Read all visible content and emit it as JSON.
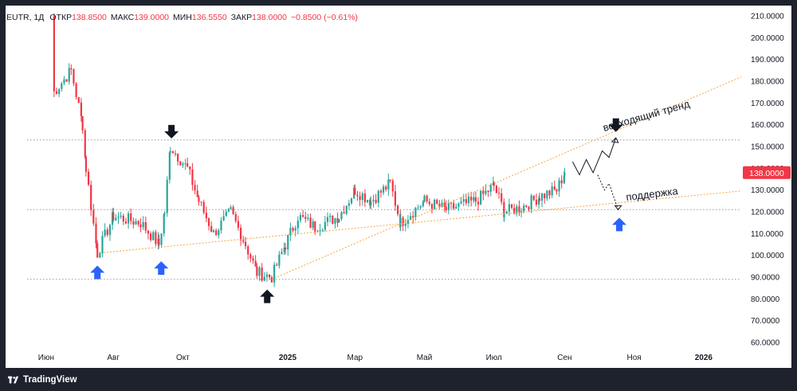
{
  "legend": {
    "symbol": "EUTR, 1Д",
    "open_label": "ОТКР",
    "open_value": "138.8500",
    "high_label": "МАКС",
    "high_value": "139.0000",
    "low_label": "МИН",
    "low_value": "136.5550",
    "close_label": "ЗАКР",
    "close_value": "138.0000",
    "change": "−0.8500 (−0.61%)"
  },
  "brand": {
    "name": "TradingView"
  },
  "colors": {
    "up": "#26a69a",
    "down": "#f23645",
    "trend": "#f7a440",
    "level": "#9598a1",
    "arrow_up": "#2962ff",
    "arrow_down": "#131722",
    "price_tag": "#f23645"
  },
  "chart_data": {
    "type": "candlestick",
    "title": "EUTR, 1Д",
    "ylim": [
      55,
      215
    ],
    "y_ticks": [
      "210.0000",
      "200.0000",
      "190.0000",
      "180.0000",
      "170.0000",
      "160.0000",
      "150.0000",
      "140.0000",
      "130.0000",
      "120.0000",
      "110.0000",
      "100.0000",
      "90.0000",
      "80.0000",
      "70.0000",
      "60.0000"
    ],
    "x_ticks": [
      "Июн",
      "Авг",
      "Окт",
      "2025",
      "Мар",
      "Май",
      "Июл",
      "Сен",
      "Ноя",
      "2026"
    ],
    "last_price": "138.0000",
    "key_points": [
      {
        "t": "2024-06-08",
        "price": 210
      },
      {
        "t": "2024-06-10",
        "price": 175
      },
      {
        "t": "2024-06-25",
        "price": 185
      },
      {
        "t": "2024-07-05",
        "price": 160
      },
      {
        "t": "2024-07-08",
        "price": 140
      },
      {
        "t": "2024-07-18",
        "price": 101
      },
      {
        "t": "2024-08-01",
        "price": 118
      },
      {
        "t": "2024-08-25",
        "price": 115
      },
      {
        "t": "2024-09-10",
        "price": 105
      },
      {
        "t": "2024-09-15",
        "price": 120
      },
      {
        "t": "2024-09-20",
        "price": 150
      },
      {
        "t": "2024-10-05",
        "price": 140
      },
      {
        "t": "2024-10-15",
        "price": 125
      },
      {
        "t": "2024-10-28",
        "price": 110
      },
      {
        "t": "2024-11-12",
        "price": 120
      },
      {
        "t": "2024-11-25",
        "price": 105
      },
      {
        "t": "2024-12-05",
        "price": 92
      },
      {
        "t": "2024-12-18",
        "price": 90
      },
      {
        "t": "2024-12-30",
        "price": 105
      },
      {
        "t": "2025-01-10",
        "price": 118
      },
      {
        "t": "2025-01-25",
        "price": 113
      },
      {
        "t": "2025-02-15",
        "price": 118
      },
      {
        "t": "2025-03-01",
        "price": 130
      },
      {
        "t": "2025-03-15",
        "price": 125
      },
      {
        "t": "2025-04-01",
        "price": 133
      },
      {
        "t": "2025-04-10",
        "price": 115
      },
      {
        "t": "2025-05-01",
        "price": 125
      },
      {
        "t": "2025-05-20",
        "price": 121
      },
      {
        "t": "2025-06-15",
        "price": 125
      },
      {
        "t": "2025-07-01",
        "price": 132
      },
      {
        "t": "2025-07-10",
        "price": 120
      },
      {
        "t": "2025-07-25",
        "price": 122
      },
      {
        "t": "2025-08-10",
        "price": 127
      },
      {
        "t": "2025-08-25",
        "price": 130
      },
      {
        "t": "2025-09-01",
        "price": 138
      }
    ],
    "annotations": {
      "uptrend_label": "восходящий тренд",
      "support_label": "поддержка",
      "horizontal_levels": [
        153,
        121,
        89
      ],
      "support_line": [
        {
          "t": "2024-07-18",
          "price": 101
        },
        {
          "t": "2026-01-20",
          "price": 129
        }
      ],
      "uptrend_line": [
        {
          "t": "2024-12-18",
          "price": 89
        },
        {
          "t": "2026-01-20",
          "price": 180
        }
      ],
      "forecast_up": [
        {
          "t": "2025-09-08",
          "price": 143
        },
        {
          "t": "2025-09-14",
          "price": 137
        },
        {
          "t": "2025-09-20",
          "price": 144
        },
        {
          "t": "2025-09-26",
          "price": 138
        },
        {
          "t": "2025-10-04",
          "price": 148
        },
        {
          "t": "2025-10-10",
          "price": 145
        },
        {
          "t": "2025-10-16",
          "price": 154
        }
      ],
      "forecast_down": [
        {
          "t": "2025-09-30",
          "price": 137
        },
        {
          "t": "2025-10-06",
          "price": 130
        },
        {
          "t": "2025-10-10",
          "price": 133
        },
        {
          "t": "2025-10-18",
          "price": 121
        }
      ],
      "up_arrows": [
        {
          "t": "2024-07-18",
          "price": 92
        },
        {
          "t": "2024-09-12",
          "price": 94
        },
        {
          "t": "2025-10-19",
          "price": 114
        }
      ],
      "down_arrows": [
        {
          "t": "2024-09-21",
          "price": 157
        },
        {
          "t": "2025-10-16",
          "price": 160
        }
      ],
      "black_up_arrow": {
        "t": "2024-12-14",
        "price": 81
      }
    }
  }
}
